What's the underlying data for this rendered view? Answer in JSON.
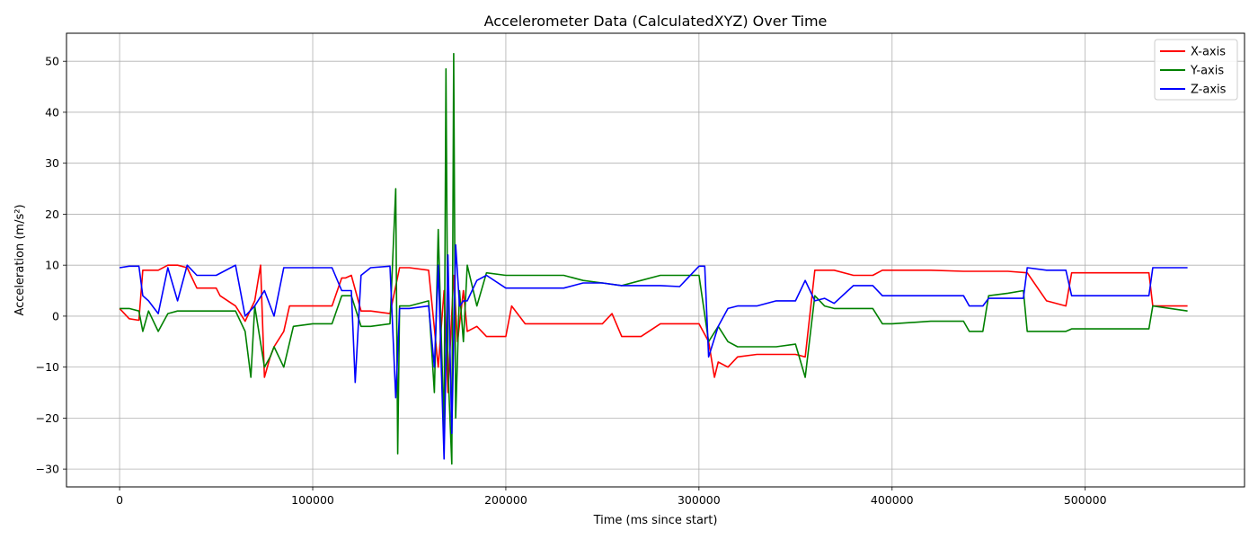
{
  "chart_data": {
    "type": "line",
    "title": "Accelerometer Data (CalculatedXYZ) Over Time",
    "xlabel": "Time (ms since start)",
    "ylabel": "Acceleration (m/s²)",
    "xlim": [
      -27500,
      582500
    ],
    "ylim": [
      -33.5,
      55.5
    ],
    "xticks": [
      0,
      100000,
      200000,
      300000,
      400000,
      500000
    ],
    "xtick_labels": [
      "0",
      "100000",
      "200000",
      "300000",
      "400000",
      "500000"
    ],
    "yticks": [
      -30,
      -20,
      -10,
      0,
      10,
      20,
      30,
      40,
      50
    ],
    "ytick_labels": [
      "−30",
      "−20",
      "−10",
      "0",
      "10",
      "20",
      "30",
      "40",
      "50"
    ],
    "grid": true,
    "legend_position": "top-right",
    "series": [
      {
        "name": "X-axis",
        "color": "#ff0000",
        "x": [
          0,
          5000,
          10000,
          12000,
          20000,
          25000,
          30000,
          35000,
          40000,
          50000,
          52000,
          60000,
          65000,
          70000,
          73000,
          75000,
          78000,
          80000,
          85000,
          88000,
          90000,
          100000,
          110000,
          115000,
          117000,
          120000,
          125000,
          130000,
          140000,
          145000,
          150000,
          160000,
          165000,
          168000,
          170000,
          173000,
          175000,
          178000,
          180000,
          185000,
          190000,
          200000,
          203000,
          210000,
          220000,
          230000,
          240000,
          250000,
          255000,
          260000,
          270000,
          280000,
          290000,
          300000,
          305000,
          308000,
          310000,
          315000,
          320000,
          330000,
          340000,
          350000,
          355000,
          360000,
          365000,
          370000,
          380000,
          385000,
          390000,
          395000,
          400000,
          420000,
          437000,
          440000,
          450000,
          460000,
          470000,
          480000,
          490000,
          493000,
          500000,
          520000,
          533000,
          535000,
          553000
        ],
        "y": [
          1.5,
          -0.5,
          -0.8,
          9.0,
          9.0,
          10.0,
          10.0,
          9.5,
          5.5,
          5.5,
          4.0,
          2.0,
          -1.0,
          3.0,
          10.0,
          -12.0,
          -8.0,
          -6.0,
          -3.0,
          2.0,
          2.0,
          2.0,
          2.0,
          7.5,
          7.5,
          8.0,
          1.0,
          1.0,
          0.5,
          9.5,
          9.5,
          9.0,
          -10.0,
          5.0,
          -15.0,
          8.0,
          -5.0,
          5.0,
          -3.0,
          -2.0,
          -4.0,
          -4.0,
          2.0,
          -1.5,
          -1.5,
          -1.5,
          -1.5,
          -1.5,
          0.5,
          -4.0,
          -4.0,
          -1.5,
          -1.5,
          -1.5,
          -5.0,
          -12.0,
          -9.0,
          -10.0,
          -8.0,
          -7.5,
          -7.5,
          -7.5,
          -8.0,
          9.0,
          9.0,
          9.0,
          8.0,
          8.0,
          8.0,
          9.0,
          9.0,
          9.0,
          8.8,
          8.8,
          8.8,
          8.8,
          8.5,
          3.0,
          2.0,
          8.5,
          8.5,
          8.5,
          8.5,
          2.0,
          2.0
        ]
      },
      {
        "name": "Y-axis",
        "color": "#008000",
        "x": [
          0,
          5000,
          10000,
          12000,
          15000,
          20000,
          25000,
          30000,
          35000,
          40000,
          50000,
          60000,
          65000,
          68000,
          70000,
          75000,
          78000,
          80000,
          85000,
          90000,
          100000,
          110000,
          115000,
          120000,
          125000,
          130000,
          140000,
          143000,
          144000,
          145000,
          150000,
          160000,
          163000,
          165000,
          168000,
          169000,
          170000,
          172000,
          173000,
          174000,
          176000,
          178000,
          180000,
          185000,
          190000,
          200000,
          210000,
          220000,
          230000,
          240000,
          250000,
          260000,
          270000,
          280000,
          290000,
          300000,
          305000,
          310000,
          315000,
          320000,
          330000,
          340000,
          350000,
          355000,
          360000,
          365000,
          370000,
          380000,
          390000,
          395000,
          400000,
          420000,
          437000,
          440000,
          447000,
          450000,
          460000,
          468000,
          470000,
          480000,
          490000,
          493000,
          500000,
          520000,
          533000,
          535000,
          553000
        ],
        "y": [
          1.5,
          1.5,
          1.0,
          -3.0,
          1.0,
          -3.0,
          0.5,
          1.0,
          1.0,
          1.0,
          1.0,
          1.0,
          -3.0,
          -12.0,
          2.0,
          -10.0,
          -8.0,
          -6.0,
          -10.0,
          -2.0,
          -1.5,
          -1.5,
          4.0,
          4.0,
          -2.0,
          -2.0,
          -1.5,
          25.0,
          -27.0,
          2.0,
          2.0,
          3.0,
          -15.0,
          17.0,
          -23.0,
          48.5,
          -10.0,
          -29.0,
          51.5,
          -20.0,
          5.0,
          -5.0,
          10.0,
          2.0,
          8.5,
          8.0,
          8.0,
          8.0,
          8.0,
          7.0,
          6.5,
          6.0,
          7.0,
          8.0,
          8.0,
          8.0,
          -5.0,
          -2.0,
          -5.0,
          -6.0,
          -6.0,
          -6.0,
          -5.5,
          -12.0,
          4.0,
          2.0,
          1.5,
          1.5,
          1.5,
          -1.5,
          -1.5,
          -1.0,
          -1.0,
          -3.0,
          -3.0,
          4.0,
          4.5,
          5.0,
          -3.0,
          -3.0,
          -3.0,
          -2.5,
          -2.5,
          -2.5,
          -2.5,
          2.0,
          1.0
        ]
      },
      {
        "name": "Z-axis",
        "color": "#0000ff",
        "x": [
          0,
          5000,
          10000,
          12000,
          15000,
          20000,
          25000,
          30000,
          35000,
          40000,
          50000,
          60000,
          65000,
          70000,
          75000,
          80000,
          85000,
          88000,
          90000,
          100000,
          110000,
          115000,
          120000,
          122000,
          125000,
          130000,
          140000,
          143000,
          145000,
          150000,
          160000,
          163000,
          165000,
          168000,
          170000,
          172000,
          174000,
          176000,
          178000,
          180000,
          185000,
          190000,
          200000,
          210000,
          220000,
          230000,
          240000,
          250000,
          260000,
          270000,
          280000,
          290000,
          300000,
          303000,
          305000,
          310000,
          315000,
          320000,
          330000,
          340000,
          350000,
          355000,
          360000,
          365000,
          370000,
          380000,
          390000,
          395000,
          400000,
          420000,
          437000,
          440000,
          447000,
          450000,
          460000,
          468000,
          470000,
          480000,
          490000,
          493000,
          500000,
          520000,
          533000,
          535000,
          553000
        ],
        "y": [
          9.5,
          9.8,
          9.8,
          4.0,
          3.0,
          0.5,
          9.5,
          3.0,
          10.0,
          8.0,
          8.0,
          10.0,
          0.0,
          2.0,
          5.0,
          0.0,
          9.5,
          9.5,
          9.5,
          9.5,
          9.5,
          5.0,
          5.0,
          -13.0,
          8.0,
          9.5,
          9.8,
          -16.0,
          1.5,
          1.5,
          2.0,
          -10.0,
          10.0,
          -28.0,
          12.0,
          -23.0,
          14.0,
          2.0,
          3.0,
          3.0,
          7.0,
          8.0,
          5.5,
          5.5,
          5.5,
          5.5,
          6.5,
          6.5,
          6.0,
          6.0,
          6.0,
          5.8,
          9.8,
          9.8,
          -8.0,
          -2.0,
          1.5,
          2.0,
          2.0,
          3.0,
          3.0,
          7.0,
          3.0,
          3.5,
          2.5,
          6.0,
          6.0,
          4.0,
          4.0,
          4.0,
          4.0,
          2.0,
          2.0,
          3.5,
          3.5,
          3.5,
          9.5,
          9.0,
          9.0,
          4.0,
          4.0,
          4.0,
          4.0,
          9.5,
          9.5
        ]
      }
    ]
  }
}
